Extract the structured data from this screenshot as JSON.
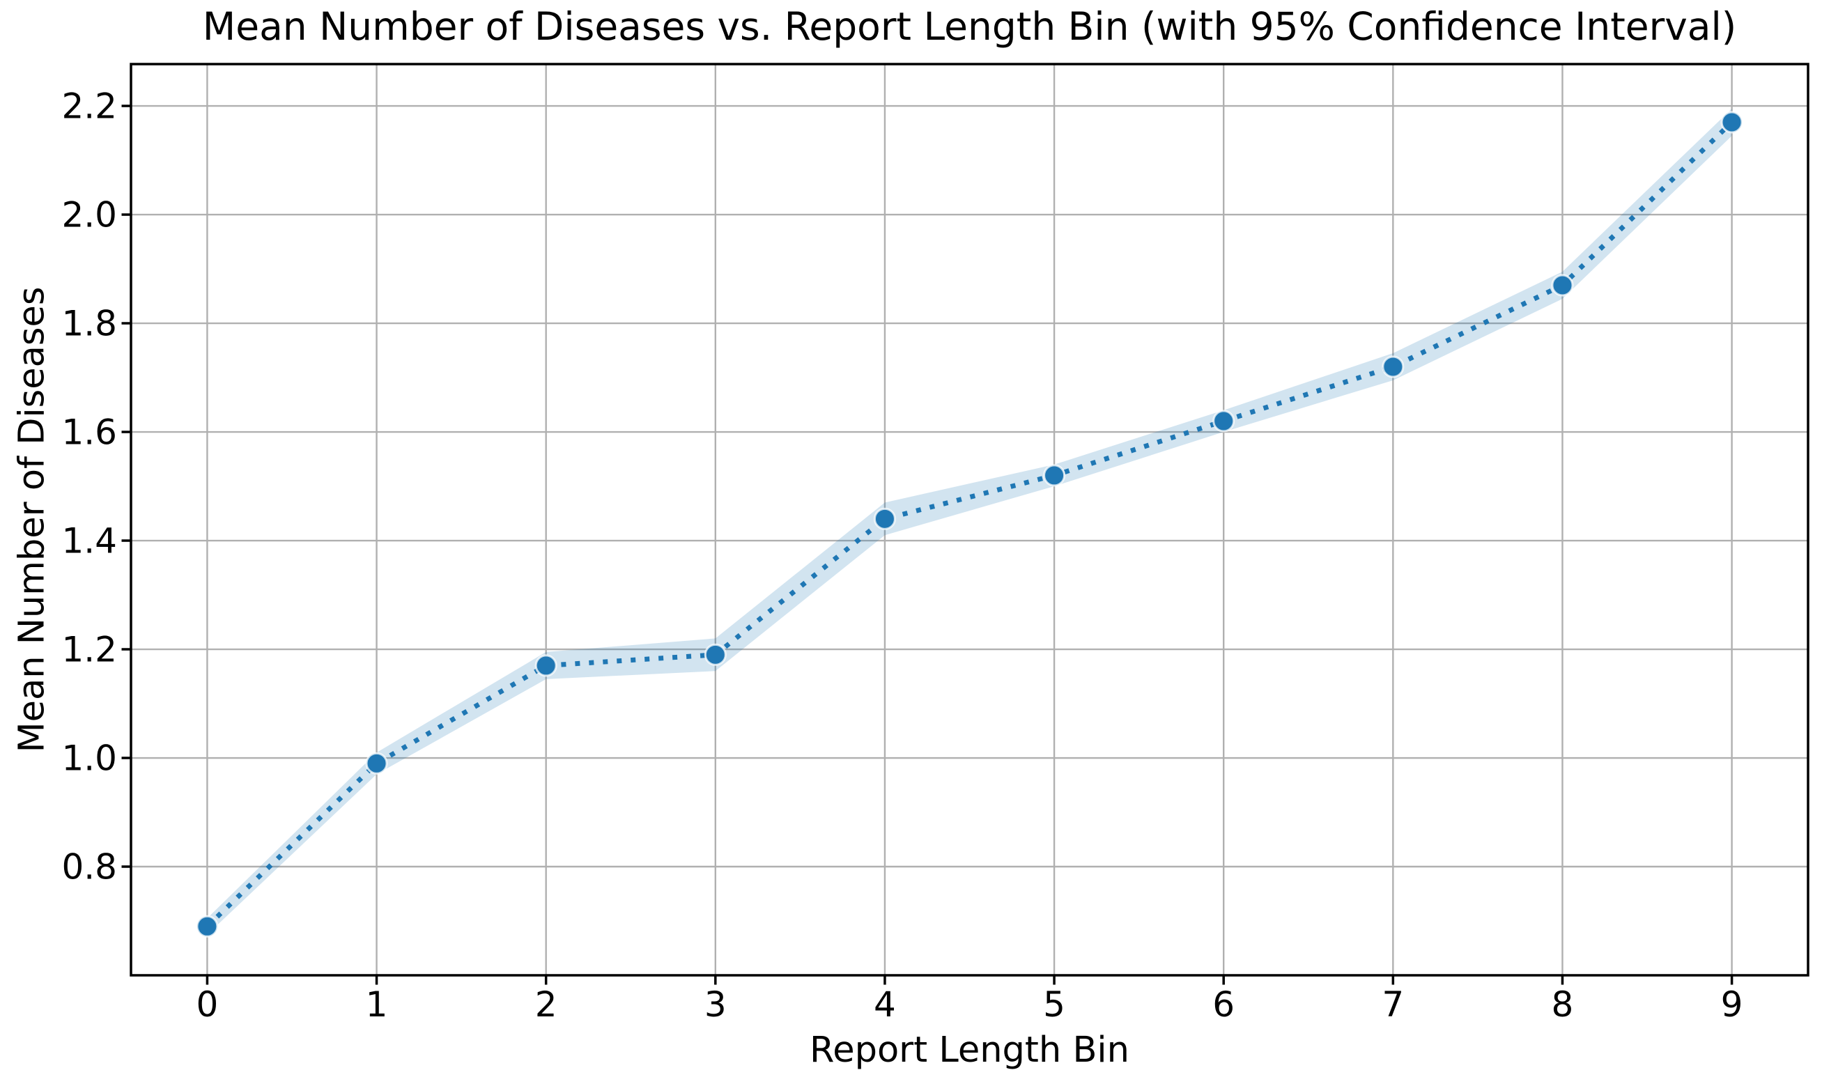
{
  "figure": {
    "kind": "matplotlib-style line chart with confidence band"
  },
  "chart_data": {
    "type": "line",
    "title": "Mean Number of Diseases vs. Report Length Bin (with 95% Confidence Interval)",
    "xlabel": "Report Length Bin",
    "ylabel": "Mean Number of Diseases",
    "x": [
      0,
      1,
      2,
      3,
      4,
      5,
      6,
      7,
      8,
      9
    ],
    "series": [
      {
        "name": "Mean number of diseases",
        "values": [
          0.69,
          0.99,
          1.17,
          1.19,
          1.44,
          1.52,
          1.62,
          1.72,
          1.87,
          2.17
        ],
        "ci_halfwidth": [
          0.015,
          0.02,
          0.025,
          0.03,
          0.03,
          0.02,
          0.02,
          0.025,
          0.025,
          0.025
        ]
      }
    ],
    "band_label": "95% confidence interval",
    "xticks": [
      0,
      1,
      2,
      3,
      4,
      5,
      6,
      7,
      8,
      9
    ],
    "yticks": [
      0.8,
      1.0,
      1.2,
      1.4,
      1.6,
      1.8,
      2.0,
      2.2
    ],
    "xlim": [
      -0.45,
      9.45
    ],
    "ylim": [
      0.6,
      2.277
    ],
    "grid": true,
    "legend": "none",
    "line_style": "dotted",
    "marker": "circle",
    "colors": {
      "line": "#1f77b4",
      "band": "#1f77b4",
      "band_opacity": 0.2,
      "grid": "#b0b0b0",
      "spine": "#000000",
      "text": "#000000",
      "background": "#ffffff"
    }
  }
}
